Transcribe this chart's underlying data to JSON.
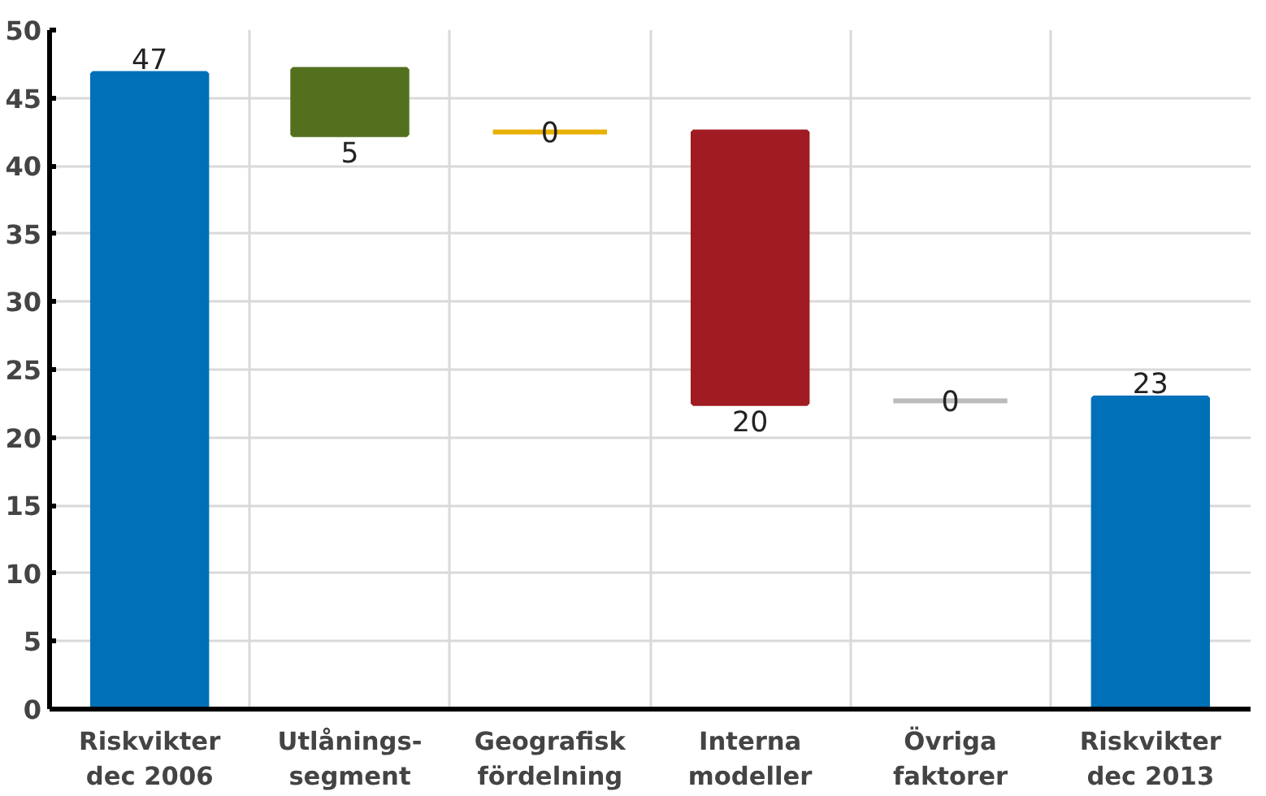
{
  "chart_data": {
    "type": "bar",
    "categories": [
      "Riskvikter\ndec 2006",
      "Utlånings-\nsegment",
      "Geografisk\nfördelning",
      "Interna\nmodeller",
      "Övriga\nfaktorer",
      "Riskvikter\ndec 2013"
    ],
    "values": [
      46.8,
      -4.8,
      0,
      -20,
      0,
      22.9
    ],
    "base": [
      0,
      47.1,
      42.5,
      42.5,
      22.7,
      0
    ],
    "colors": [
      "#0070b8",
      "#53701f",
      "#e8b000",
      "#a01c22",
      "#bcbcbc",
      "#0070b8"
    ],
    "value_labels": [
      "47",
      "5",
      "0",
      "20",
      "0",
      "23"
    ],
    "ylim": [
      0,
      50
    ],
    "yticks": [
      0,
      5,
      10,
      15,
      20,
      25,
      30,
      35,
      40,
      45,
      50
    ],
    "grid": true
  }
}
